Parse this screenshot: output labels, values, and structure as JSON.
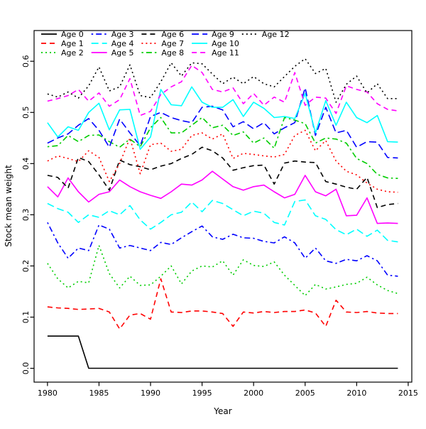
{
  "chart_data": {
    "type": "line",
    "title": "",
    "xlabel": "Year",
    "ylabel": "Stock mean weight",
    "grid": false,
    "xlim": [
      1978.7,
      2015.35
    ],
    "ylim": [
      -0.027,
      0.66
    ],
    "x_ticks": [
      1980,
      1985,
      1990,
      1995,
      2000,
      2005,
      2010,
      2015
    ],
    "x_tick_labels": [
      "1980",
      "1985",
      "1990",
      "1995",
      "2000",
      "2005",
      "2010",
      "2015"
    ],
    "y_ticks": [
      0.0,
      0.1,
      0.2,
      0.3,
      0.4,
      0.5,
      0.6
    ],
    "y_tick_labels": [
      "0.0",
      "0.1",
      "0.2",
      "0.3",
      "0.4",
      "0.5",
      "0.6"
    ],
    "legend": {
      "ncol": 5,
      "nrow": 3,
      "order": "column-major",
      "location": "top-inside",
      "frame": false
    },
    "x": [
      1980,
      1981,
      1982,
      1983,
      1984,
      1985,
      1986,
      1987,
      1988,
      1989,
      1990,
      1991,
      1992,
      1993,
      1994,
      1995,
      1996,
      1997,
      1998,
      1999,
      2000,
      2001,
      2002,
      2003,
      2004,
      2005,
      2006,
      2007,
      2008,
      2009,
      2010,
      2011,
      2012,
      2013,
      2014
    ],
    "series": [
      {
        "name": "Age 0",
        "color": "#000000",
        "linestyle": "solid",
        "values": [
          0.063,
          0.063,
          0.063,
          0.063,
          0,
          0,
          0,
          0,
          0,
          0,
          0,
          0,
          0,
          0,
          0,
          0,
          0,
          0,
          0,
          0,
          0,
          0,
          0,
          0,
          0,
          0,
          0,
          0,
          0,
          0,
          0,
          0,
          0,
          0,
          0
        ]
      },
      {
        "name": "Age 1",
        "color": "#FF0000",
        "linestyle": "dashed",
        "values": [
          0.12,
          0.118,
          0.117,
          0.115,
          0.116,
          0.117,
          0.11,
          0.077,
          0.104,
          0.107,
          0.096,
          0.175,
          0.11,
          0.109,
          0.112,
          0.112,
          0.11,
          0.107,
          0.082,
          0.11,
          0.108,
          0.111,
          0.109,
          0.111,
          0.111,
          0.114,
          0.108,
          0.082,
          0.133,
          0.11,
          0.109,
          0.111,
          0.108,
          0.107,
          0.107
        ]
      },
      {
        "name": "Age 2",
        "color": "#00CD00",
        "linestyle": "dotted",
        "values": [
          0.205,
          0.175,
          0.157,
          0.17,
          0.167,
          0.24,
          0.185,
          0.157,
          0.18,
          0.162,
          0.163,
          0.18,
          0.2,
          0.165,
          0.19,
          0.2,
          0.198,
          0.21,
          0.182,
          0.212,
          0.201,
          0.199,
          0.208,
          0.182,
          0.162,
          0.142,
          0.164,
          0.155,
          0.159,
          0.164,
          0.166,
          0.178,
          0.163,
          0.152,
          0.146
        ]
      },
      {
        "name": "Age 3",
        "color": "#0000FF",
        "linestyle": "dotdash",
        "values": [
          0.285,
          0.245,
          0.215,
          0.235,
          0.23,
          0.28,
          0.272,
          0.235,
          0.24,
          0.235,
          0.23,
          0.246,
          0.242,
          0.255,
          0.267,
          0.278,
          0.257,
          0.252,
          0.262,
          0.255,
          0.254,
          0.248,
          0.245,
          0.257,
          0.245,
          0.215,
          0.235,
          0.21,
          0.205,
          0.213,
          0.21,
          0.22,
          0.21,
          0.182,
          0.18
        ]
      },
      {
        "name": "Age 4",
        "color": "#00FFFF",
        "linestyle": "longdash",
        "values": [
          0.322,
          0.312,
          0.305,
          0.285,
          0.3,
          0.295,
          0.308,
          0.3,
          0.318,
          0.29,
          0.272,
          0.285,
          0.3,
          0.305,
          0.325,
          0.306,
          0.328,
          0.322,
          0.31,
          0.298,
          0.307,
          0.303,
          0.285,
          0.28,
          0.326,
          0.329,
          0.298,
          0.291,
          0.271,
          0.261,
          0.272,
          0.258,
          0.27,
          0.25,
          0.247
        ]
      },
      {
        "name": "Age 5",
        "color": "#FF00FF",
        "linestyle": "solid",
        "values": [
          0.355,
          0.335,
          0.372,
          0.345,
          0.325,
          0.34,
          0.345,
          0.368,
          0.355,
          0.345,
          0.338,
          0.332,
          0.345,
          0.36,
          0.358,
          0.368,
          0.385,
          0.37,
          0.355,
          0.348,
          0.355,
          0.358,
          0.345,
          0.333,
          0.34,
          0.377,
          0.345,
          0.337,
          0.35,
          0.298,
          0.299,
          0.333,
          0.283,
          0.284,
          0.283
        ]
      },
      {
        "name": "Age 6",
        "color": "#000000",
        "linestyle": "dashed",
        "values": [
          0.377,
          0.373,
          0.352,
          0.412,
          0.404,
          0.378,
          0.348,
          0.407,
          0.398,
          0.394,
          0.388,
          0.395,
          0.4,
          0.41,
          0.418,
          0.432,
          0.425,
          0.411,
          0.387,
          0.392,
          0.396,
          0.397,
          0.36,
          0.401,
          0.405,
          0.403,
          0.402,
          0.365,
          0.36,
          0.354,
          0.35,
          0.373,
          0.314,
          0.32,
          0.322
        ]
      },
      {
        "name": "Age 7",
        "color": "#FF0000",
        "linestyle": "dotted",
        "values": [
          0.405,
          0.415,
          0.41,
          0.404,
          0.425,
          0.412,
          0.365,
          0.4,
          0.45,
          0.38,
          0.437,
          0.44,
          0.424,
          0.428,
          0.455,
          0.46,
          0.448,
          0.458,
          0.41,
          0.42,
          0.418,
          0.415,
          0.413,
          0.418,
          0.455,
          0.465,
          0.425,
          0.445,
          0.405,
          0.385,
          0.378,
          0.362,
          0.35,
          0.345,
          0.344
        ]
      },
      {
        "name": "Age 8",
        "color": "#00CD00",
        "linestyle": "dotdash",
        "values": [
          0.433,
          0.435,
          0.455,
          0.443,
          0.455,
          0.456,
          0.443,
          0.432,
          0.448,
          0.433,
          0.47,
          0.49,
          0.46,
          0.46,
          0.475,
          0.49,
          0.47,
          0.475,
          0.455,
          0.462,
          0.44,
          0.45,
          0.43,
          0.49,
          0.485,
          0.478,
          0.44,
          0.45,
          0.448,
          0.44,
          0.41,
          0.4,
          0.379,
          0.372,
          0.371
        ]
      },
      {
        "name": "Age 9",
        "color": "#0000FF",
        "linestyle": "longdash",
        "values": [
          0.44,
          0.45,
          0.458,
          0.475,
          0.488,
          0.465,
          0.432,
          0.487,
          0.46,
          0.435,
          0.492,
          0.5,
          0.49,
          0.484,
          0.48,
          0.51,
          0.512,
          0.505,
          0.472,
          0.482,
          0.468,
          0.48,
          0.458,
          0.47,
          0.48,
          0.548,
          0.455,
          0.51,
          0.46,
          0.465,
          0.432,
          0.443,
          0.442,
          0.412,
          0.411
        ]
      },
      {
        "name": "Age 10",
        "color": "#00FFFF",
        "linestyle": "solid",
        "values": [
          0.48,
          0.452,
          0.472,
          0.465,
          0.5,
          0.518,
          0.466,
          0.505,
          0.506,
          0.428,
          0.452,
          0.545,
          0.515,
          0.513,
          0.55,
          0.52,
          0.51,
          0.51,
          0.525,
          0.492,
          0.52,
          0.508,
          0.49,
          0.492,
          0.488,
          0.537,
          0.46,
          0.523,
          0.475,
          0.52,
          0.49,
          0.48,
          0.494,
          0.443,
          0.442
        ]
      },
      {
        "name": "Age 11",
        "color": "#FF00FF",
        "linestyle": "dashed",
        "values": [
          0.522,
          0.527,
          0.533,
          0.545,
          0.522,
          0.538,
          0.512,
          0.525,
          0.566,
          0.494,
          0.502,
          0.535,
          0.55,
          0.56,
          0.592,
          0.578,
          0.545,
          0.54,
          0.548,
          0.517,
          0.537,
          0.514,
          0.53,
          0.52,
          0.578,
          0.514,
          0.53,
          0.528,
          0.498,
          0.552,
          0.545,
          0.54,
          0.517,
          0.506,
          0.503
        ]
      },
      {
        "name": "Age 12",
        "color": "#000000",
        "linestyle": "dotted",
        "values": [
          0.536,
          0.53,
          0.54,
          0.528,
          0.552,
          0.589,
          0.542,
          0.55,
          0.593,
          0.533,
          0.529,
          0.56,
          0.597,
          0.571,
          0.597,
          0.595,
          0.575,
          0.556,
          0.569,
          0.556,
          0.57,
          0.556,
          0.55,
          0.57,
          0.59,
          0.605,
          0.576,
          0.586,
          0.52,
          0.555,
          0.571,
          0.538,
          0.556,
          0.527,
          0.527
        ]
      }
    ]
  }
}
